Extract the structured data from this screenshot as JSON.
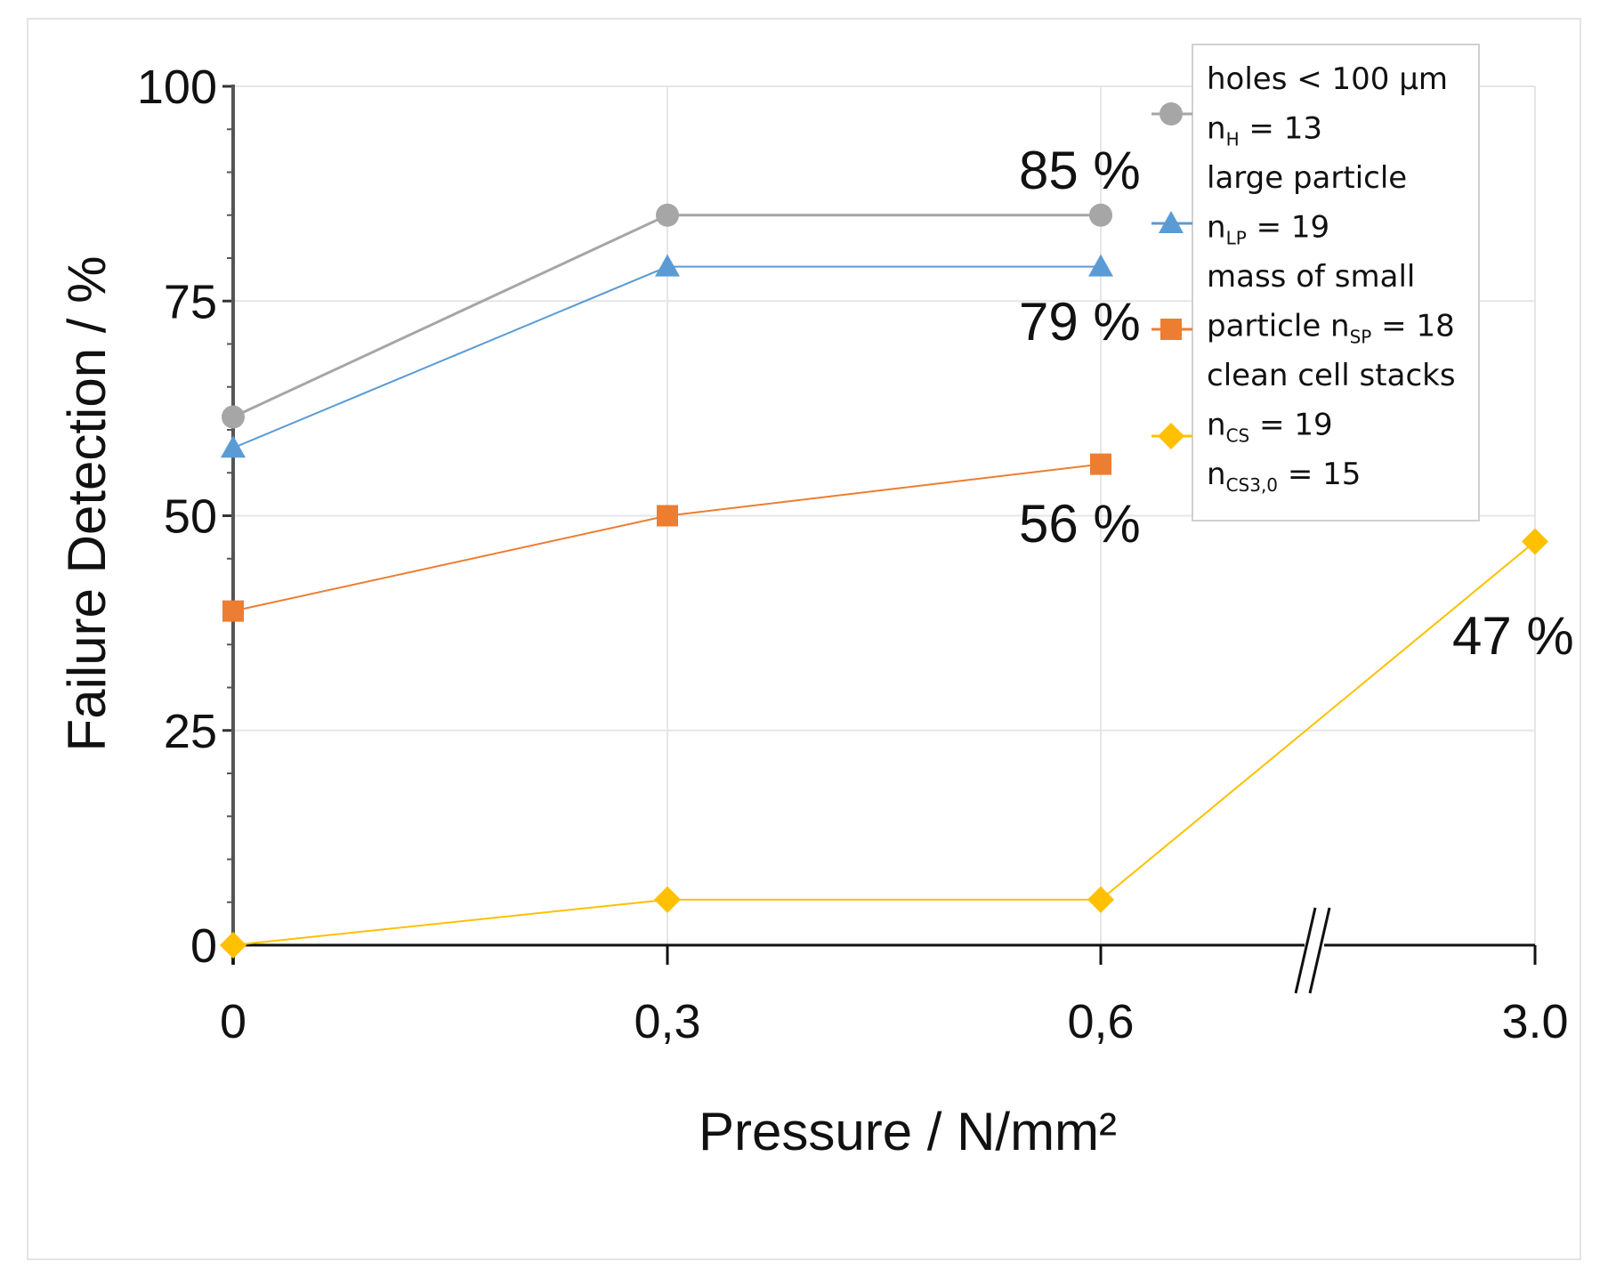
{
  "chart_data": {
    "type": "line",
    "title": "",
    "xlabel": "Pressure / N/mm²",
    "ylabel": "Failure Detection / %",
    "ylim": [
      0,
      100
    ],
    "yticks": [
      "0",
      "25",
      "50",
      "75",
      "100"
    ],
    "categories": [
      "0",
      "0,3",
      "0,6",
      "3.0"
    ],
    "axis_break": "between 0,6 and 3.0",
    "grid": true,
    "series": [
      {
        "key": "holes",
        "name": "holes < 100 µm",
        "n_label": "nH = 13",
        "marker": "circle",
        "color": "#a6a6a6",
        "values": [
          61.5,
          85,
          85,
          null
        ]
      },
      {
        "key": "large",
        "name": "large particle",
        "n_label": "nLP = 19",
        "marker": "triangle",
        "color": "#5b9bd5",
        "values": [
          57.9,
          79,
          79,
          null
        ]
      },
      {
        "key": "small",
        "name": "mass of small particle",
        "n_label": "nSP = 18",
        "marker": "square",
        "color": "#ed7d31",
        "values": [
          38.9,
          50,
          56,
          null
        ]
      },
      {
        "key": "clean",
        "name": "clean cell stacks",
        "n_label": "nCS = 19",
        "n_label2": "nCS3,0 = 15",
        "marker": "diamond",
        "color": "#ffc000",
        "values": [
          0,
          5.3,
          5.3,
          47
        ]
      }
    ],
    "annotations": [
      "85 %",
      "79 %",
      "56 %",
      "47 %"
    ],
    "legend": {
      "position": "top-right",
      "lines": [
        {
          "main": "holes < 100 µm"
        },
        {
          "main": "n",
          "sub": "H",
          "rest": " = 13"
        },
        {
          "main": "large particle"
        },
        {
          "main": "n",
          "sub": "LP",
          "rest": " = 19"
        },
        {
          "main": "mass of small"
        },
        {
          "main": "particle n",
          "sub": "SP",
          "rest": " = 18"
        },
        {
          "main": "clean cell stacks"
        },
        {
          "main": "n",
          "sub": "CS",
          "rest": " = 19"
        },
        {
          "main": "n",
          "sub": "CS3,0",
          "rest": " = 15"
        }
      ]
    }
  }
}
